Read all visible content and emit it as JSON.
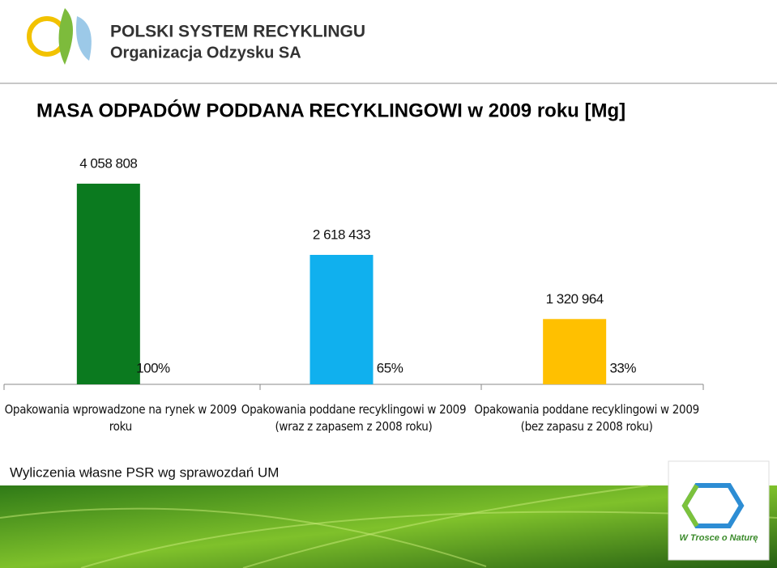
{
  "header": {
    "org_name": "POLSKI SYSTEM RECYKLINGU",
    "org_subtitle": "Organizacja Odzysku SA"
  },
  "chart_data": {
    "type": "bar",
    "title": "MASA ODPADÓW PODDANA RECYKLINGOWI w 2009 roku [Mg]",
    "categories": [
      "Opakowania wprowadzone na rynek w 2009 roku",
      "Opakowania poddane recyklingowi w 2009 (wraz z zapasem z 2008 roku)",
      "Opakowania poddane recyklingowi w 2009 (bez zapasu z 2008 roku)"
    ],
    "values": [
      4058808,
      2618433,
      1320964
    ],
    "value_labels": [
      "4 058 808",
      "2 618 433",
      "1 320 964"
    ],
    "share_labels": [
      "100%",
      "65%",
      "33%"
    ],
    "colors": [
      "#0b7a1f",
      "#10b0ee",
      "#ffc000"
    ]
  },
  "footer": {
    "note": "Wyliczenia własne PSR wg sprawozdań UM",
    "badge": "W Trosce o Naturę"
  }
}
